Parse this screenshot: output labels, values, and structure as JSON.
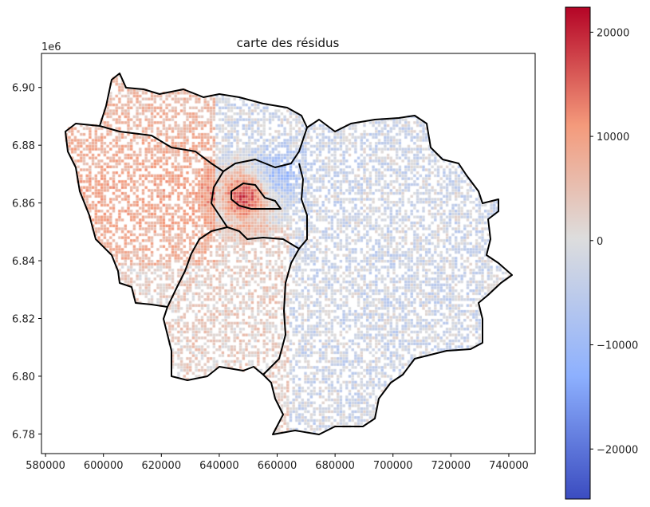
{
  "chart_data": {
    "type": "heatmap",
    "title": "carte des résidus",
    "xlabel": "",
    "ylabel": "",
    "y_offset_label": "1e6",
    "xlim": [
      578600,
      749100
    ],
    "ylim": [
      6.7732,
      6.9118
    ],
    "x_ticks": [
      580000,
      600000,
      620000,
      640000,
      660000,
      680000,
      700000,
      720000,
      740000
    ],
    "x_tick_labels": [
      "580000",
      "600000",
      "620000",
      "640000",
      "660000",
      "680000",
      "700000",
      "720000",
      "740000"
    ],
    "y_ticks": [
      6.78,
      6.8,
      6.82,
      6.84,
      6.86,
      6.88,
      6.9
    ],
    "y_tick_labels": [
      "6.78",
      "6.80",
      "6.82",
      "6.84",
      "6.86",
      "6.88",
      "6.90"
    ],
    "colormap": "coolwarm",
    "colorbar": {
      "vmin": -24800,
      "vmax": 22400,
      "ticks": [
        -20000,
        -10000,
        0,
        10000,
        20000
      ],
      "tick_labels": [
        "−20000",
        "−10000",
        "0",
        "10000",
        "20000"
      ]
    },
    "colors": {
      "low": "#3b4cc0",
      "mid": "#dddddd",
      "high": "#b40426",
      "boundary": "#000000"
    },
    "grid": false
  }
}
